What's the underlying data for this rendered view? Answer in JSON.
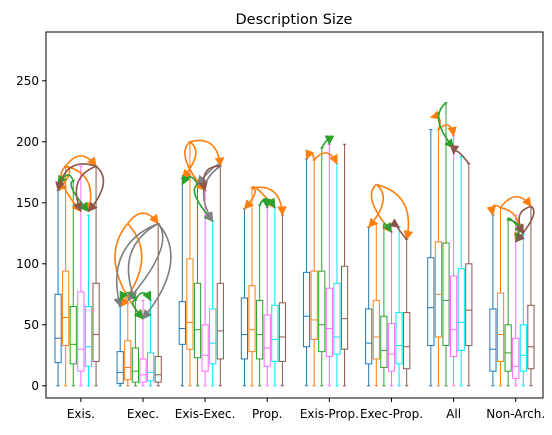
{
  "chart_data": {
    "type": "box",
    "title": "Description Size",
    "xlabel": "",
    "ylabel": "",
    "ylim": [
      -10,
      290
    ],
    "yticks": [
      0,
      50,
      100,
      150,
      200,
      250
    ],
    "grid": false,
    "legend": "none",
    "categories": [
      "Exis.",
      "Exec.",
      "Exis-Exec.",
      "Prop.",
      "Exis-Prop.",
      "Exec-Prop.",
      "All",
      "Non-Arch."
    ],
    "box_colors": [
      "#1f77b4",
      "#ff7f0e",
      "#2ca02c",
      "#ff69ff",
      "#00e5ff",
      "#8c564b"
    ],
    "series": [
      {
        "category": "Exis.",
        "boxes": [
          {
            "min": 0,
            "q1": 19,
            "median": 39,
            "q3": 75,
            "max": 160
          },
          {
            "min": 0,
            "q1": 33,
            "median": 56,
            "q3": 94,
            "max": 180
          },
          {
            "min": 0,
            "q1": 18,
            "median": 34,
            "q3": 65,
            "max": 168
          },
          {
            "min": 0,
            "q1": 12,
            "median": 30,
            "q3": 77,
            "max": 180
          },
          {
            "min": 0,
            "q1": 16,
            "median": 32,
            "q3": 65,
            "max": 140
          },
          {
            "min": 0,
            "q1": 20,
            "median": 42,
            "q3": 84,
            "max": 180
          }
        ]
      },
      {
        "category": "Exec.",
        "boxes": [
          {
            "min": 0,
            "q1": 2,
            "median": 11,
            "q3": 28,
            "max": 65
          },
          {
            "min": 0,
            "q1": 5,
            "median": 15,
            "q3": 37,
            "max": 70
          },
          {
            "min": 0,
            "q1": 3,
            "median": 12,
            "q3": 31,
            "max": 70
          },
          {
            "min": 0,
            "q1": 3,
            "median": 9,
            "q3": 22,
            "max": 70
          },
          {
            "min": 0,
            "q1": 4,
            "median": 11,
            "q3": 27,
            "max": 70
          },
          {
            "min": 0,
            "q1": 3,
            "median": 9,
            "q3": 24,
            "max": 133
          }
        ]
      },
      {
        "category": "Exis-Exec.",
        "boxes": [
          {
            "min": 0,
            "q1": 34,
            "median": 47,
            "q3": 69,
            "max": 170
          },
          {
            "min": 0,
            "q1": 30,
            "median": 52,
            "q3": 104,
            "max": 200
          },
          {
            "min": 0,
            "q1": 23,
            "median": 46,
            "q3": 84,
            "max": 165
          },
          {
            "min": 0,
            "q1": 12,
            "median": 25,
            "q3": 50,
            "max": 160
          },
          {
            "min": 0,
            "q1": 18,
            "median": 35,
            "q3": 63,
            "max": 135
          },
          {
            "min": 0,
            "q1": 22,
            "median": 45,
            "q3": 84,
            "max": 180
          }
        ]
      },
      {
        "category": "Prop.",
        "boxes": [
          {
            "min": 0,
            "q1": 22,
            "median": 42,
            "q3": 72,
            "max": 145
          },
          {
            "min": 0,
            "q1": 28,
            "median": 46,
            "q3": 82,
            "max": 162
          },
          {
            "min": 0,
            "q1": 22,
            "median": 42,
            "q3": 70,
            "max": 148
          },
          {
            "min": 0,
            "q1": 16,
            "median": 31,
            "q3": 58,
            "max": 146
          },
          {
            "min": 0,
            "q1": 20,
            "median": 38,
            "q3": 66,
            "max": 146
          },
          {
            "min": 0,
            "q1": 20,
            "median": 40,
            "q3": 68,
            "max": 140
          }
        ]
      },
      {
        "category": "Exis-Prop.",
        "boxes": [
          {
            "min": 0,
            "q1": 32,
            "median": 57,
            "q3": 93,
            "max": 186
          },
          {
            "min": 0,
            "q1": 38,
            "median": 54,
            "q3": 94,
            "max": 185
          },
          {
            "min": 0,
            "q1": 28,
            "median": 50,
            "q3": 94,
            "max": 195
          },
          {
            "min": 0,
            "q1": 24,
            "median": 47,
            "q3": 80,
            "max": 198
          },
          {
            "min": 0,
            "q1": 26,
            "median": 40,
            "q3": 84,
            "max": 182
          },
          {
            "min": 0,
            "q1": 30,
            "median": 55,
            "q3": 98,
            "max": 198
          }
        ]
      },
      {
        "category": "Exec-Prop.",
        "boxes": [
          {
            "min": 0,
            "q1": 18,
            "median": 35,
            "q3": 63,
            "max": 130
          },
          {
            "min": 0,
            "q1": 22,
            "median": 40,
            "q3": 70,
            "max": 133
          },
          {
            "min": 0,
            "q1": 15,
            "median": 29,
            "q3": 57,
            "max": 130
          },
          {
            "min": 0,
            "q1": 12,
            "median": 26,
            "q3": 51,
            "max": 126
          },
          {
            "min": 0,
            "q1": 18,
            "median": 33,
            "q3": 60,
            "max": 130
          },
          {
            "min": 0,
            "q1": 14,
            "median": 32,
            "q3": 60,
            "max": 120
          }
        ]
      },
      {
        "category": "All",
        "boxes": [
          {
            "min": 0,
            "q1": 33,
            "median": 64,
            "q3": 105,
            "max": 210
          },
          {
            "min": 0,
            "q1": 40,
            "median": 75,
            "q3": 118,
            "max": 210
          },
          {
            "min": 0,
            "q1": 33,
            "median": 70,
            "q3": 117,
            "max": 232
          },
          {
            "min": 0,
            "q1": 24,
            "median": 46,
            "q3": 90,
            "max": 205
          },
          {
            "min": 0,
            "q1": 29,
            "median": 52,
            "q3": 96,
            "max": 188
          },
          {
            "min": 0,
            "q1": 33,
            "median": 62,
            "q3": 100,
            "max": 182
          }
        ]
      },
      {
        "category": "Non-Arch.",
        "boxes": [
          {
            "min": 0,
            "q1": 12,
            "median": 30,
            "q3": 63,
            "max": 140
          },
          {
            "min": 0,
            "q1": 20,
            "median": 42,
            "q3": 76,
            "max": 146
          },
          {
            "min": 0,
            "q1": 12,
            "median": 27,
            "q3": 50,
            "max": 136
          },
          {
            "min": 0,
            "q1": 6,
            "median": 16,
            "q3": 39,
            "max": 140
          },
          {
            "min": 0,
            "q1": 12,
            "median": 25,
            "q3": 50,
            "max": 125
          },
          {
            "min": 0,
            "q1": 14,
            "median": 32,
            "q3": 66,
            "max": 147
          }
        ]
      }
    ],
    "annotation_arrows": [
      {
        "category": "Exis.",
        "color": "#ff7f0e",
        "from": [
          1,
          180
        ],
        "to": [
          3,
          143
        ]
      },
      {
        "category": "Exis.",
        "color": "#ff7f0e",
        "from": [
          1,
          180
        ],
        "to": [
          4,
          143
        ]
      },
      {
        "category": "Exis.",
        "color": "#ff7f0e",
        "from": [
          1,
          180
        ],
        "to": [
          5,
          180
        ]
      },
      {
        "category": "Exis.",
        "color": "#ff7f0e",
        "from": [
          1,
          180
        ],
        "to": [
          0,
          160
        ]
      },
      {
        "category": "Exis.",
        "color": "#2ca02c",
        "from": [
          2,
          168
        ],
        "to": [
          4,
          143
        ]
      },
      {
        "category": "Exis.",
        "color": "#2ca02c",
        "from": [
          2,
          168
        ],
        "to": [
          0,
          165
        ]
      },
      {
        "category": "Exis.",
        "color": "#8c564b",
        "from": [
          5,
          180
        ],
        "to": [
          3,
          143
        ]
      },
      {
        "category": "Exis.",
        "color": "#8c564b",
        "from": [
          5,
          180
        ],
        "to": [
          4,
          143
        ]
      },
      {
        "category": "Exis.",
        "color": "#8c564b",
        "from": [
          5,
          180
        ],
        "to": [
          0,
          160
        ]
      },
      {
        "category": "Exec.",
        "color": "#ff7f0e",
        "from": [
          1,
          133
        ],
        "to": [
          0,
          65
        ]
      },
      {
        "category": "Exec.",
        "color": "#ff7f0e",
        "from": [
          1,
          133
        ],
        "to": [
          3,
          55
        ]
      },
      {
        "category": "Exec.",
        "color": "#ff7f0e",
        "from": [
          1,
          133
        ],
        "to": [
          5,
          133
        ]
      },
      {
        "category": "Exec.",
        "color": "#7f7f7f",
        "from": [
          5,
          133
        ],
        "to": [
          0,
          65
        ]
      },
      {
        "category": "Exec.",
        "color": "#7f7f7f",
        "from": [
          5,
          133
        ],
        "to": [
          1,
          70
        ]
      },
      {
        "category": "Exec.",
        "color": "#7f7f7f",
        "from": [
          5,
          133
        ],
        "to": [
          2,
          70
        ]
      },
      {
        "category": "Exec.",
        "color": "#7f7f7f",
        "from": [
          5,
          133
        ],
        "to": [
          3,
          55
        ]
      },
      {
        "category": "Exec.",
        "color": "#2ca02c",
        "from": [
          2,
          70
        ],
        "to": [
          3,
          55
        ]
      },
      {
        "category": "Exec.",
        "color": "#2ca02c",
        "from": [
          2,
          70
        ],
        "to": [
          4,
          70
        ]
      },
      {
        "category": "Exec.",
        "color": "#2ca02c",
        "from": [
          2,
          70
        ],
        "to": [
          0,
          70
        ]
      },
      {
        "category": "Exis-Exec.",
        "color": "#ff7f0e",
        "from": [
          1,
          200
        ],
        "to": [
          0,
          170
        ]
      },
      {
        "category": "Exis-Exec.",
        "color": "#ff7f0e",
        "from": [
          1,
          200
        ],
        "to": [
          3,
          160
        ]
      },
      {
        "category": "Exis-Exec.",
        "color": "#ff7f0e",
        "from": [
          1,
          200
        ],
        "to": [
          5,
          180
        ]
      },
      {
        "category": "Exis-Exec.",
        "color": "#2ca02c",
        "from": [
          2,
          165
        ],
        "to": [
          4,
          135
        ]
      },
      {
        "category": "Exis-Exec.",
        "color": "#2ca02c",
        "from": [
          2,
          165
        ],
        "to": [
          0,
          165
        ]
      },
      {
        "category": "Exis-Exec.",
        "color": "#7f7f7f",
        "from": [
          5,
          180
        ],
        "to": [
          4,
          135
        ]
      },
      {
        "category": "Exis-Exec.",
        "color": "#7f7f7f",
        "from": [
          5,
          180
        ],
        "to": [
          2,
          165
        ]
      },
      {
        "category": "Exis-Exec.",
        "color": "#8c564b",
        "from": [
          5,
          180
        ],
        "to": [
          3,
          160
        ]
      },
      {
        "category": "Prop.",
        "color": "#ff7f0e",
        "from": [
          1,
          162
        ],
        "to": [
          0,
          145
        ]
      },
      {
        "category": "Prop.",
        "color": "#ff7f0e",
        "from": [
          1,
          162
        ],
        "to": [
          4,
          146
        ]
      },
      {
        "category": "Prop.",
        "color": "#ff7f0e",
        "from": [
          1,
          162
        ],
        "to": [
          5,
          140
        ]
      },
      {
        "category": "Prop.",
        "color": "#2ca02c",
        "from": [
          2,
          148
        ],
        "to": [
          4,
          146
        ]
      },
      {
        "category": "Prop.",
        "color": "#2ca02c",
        "from": [
          2,
          148
        ],
        "to": [
          3,
          146
        ]
      },
      {
        "category": "Exis-Prop.",
        "color": "#ff7f0e",
        "from": [
          1,
          185
        ],
        "to": [
          0,
          186
        ]
      },
      {
        "category": "Exis-Prop.",
        "color": "#ff7f0e",
        "from": [
          1,
          185
        ],
        "to": [
          4,
          182
        ]
      },
      {
        "category": "Exis-Prop.",
        "color": "#2ca02c",
        "from": [
          2,
          195
        ],
        "to": [
          3,
          198
        ]
      },
      {
        "category": "Exec-Prop.",
        "color": "#ff7f0e",
        "from": [
          1,
          165
        ],
        "to": [
          0,
          130
        ]
      },
      {
        "category": "Exec-Prop.",
        "color": "#ff7f0e",
        "from": [
          1,
          165
        ],
        "to": [
          3,
          126
        ]
      },
      {
        "category": "Exec-Prop.",
        "color": "#ff7f0e",
        "from": [
          1,
          165
        ],
        "to": [
          5,
          120
        ]
      },
      {
        "category": "Exec-Prop.",
        "color": "#2ca02c",
        "from": [
          2,
          130
        ],
        "to": [
          3,
          126
        ]
      },
      {
        "category": "Exec-Prop.",
        "color": "#8c564b",
        "from": [
          5,
          120
        ],
        "to": [
          4,
          130
        ]
      },
      {
        "category": "All",
        "color": "#ff7f0e",
        "from": [
          1,
          210
        ],
        "to": [
          0,
          220
        ]
      },
      {
        "category": "All",
        "color": "#ff7f0e",
        "from": [
          1,
          210
        ],
        "to": [
          3,
          205
        ]
      },
      {
        "category": "All",
        "color": "#2ca02c",
        "from": [
          2,
          232
        ],
        "to": [
          3,
          195
        ]
      },
      {
        "category": "All",
        "color": "#8c564b",
        "from": [
          5,
          182
        ],
        "to": [
          3,
          190
        ]
      },
      {
        "category": "Non-Arch.",
        "color": "#ff7f0e",
        "from": [
          1,
          146
        ],
        "to": [
          0,
          140
        ]
      },
      {
        "category": "Non-Arch.",
        "color": "#ff7f0e",
        "from": [
          1,
          146
        ],
        "to": [
          3,
          118
        ]
      },
      {
        "category": "Non-Arch.",
        "color": "#ff7f0e",
        "from": [
          1,
          146
        ],
        "to": [
          5,
          147
        ]
      },
      {
        "category": "Non-Arch.",
        "color": "#2ca02c",
        "from": [
          2,
          136
        ],
        "to": [
          3,
          118
        ]
      },
      {
        "category": "Non-Arch.",
        "color": "#2ca02c",
        "from": [
          2,
          136
        ],
        "to": [
          4,
          125
        ]
      },
      {
        "category": "Non-Arch.",
        "color": "#8c564b",
        "from": [
          5,
          147
        ],
        "to": [
          3,
          118
        ]
      },
      {
        "category": "Non-Arch.",
        "color": "#8c564b",
        "from": [
          5,
          147
        ],
        "to": [
          4,
          125
        ]
      }
    ]
  }
}
